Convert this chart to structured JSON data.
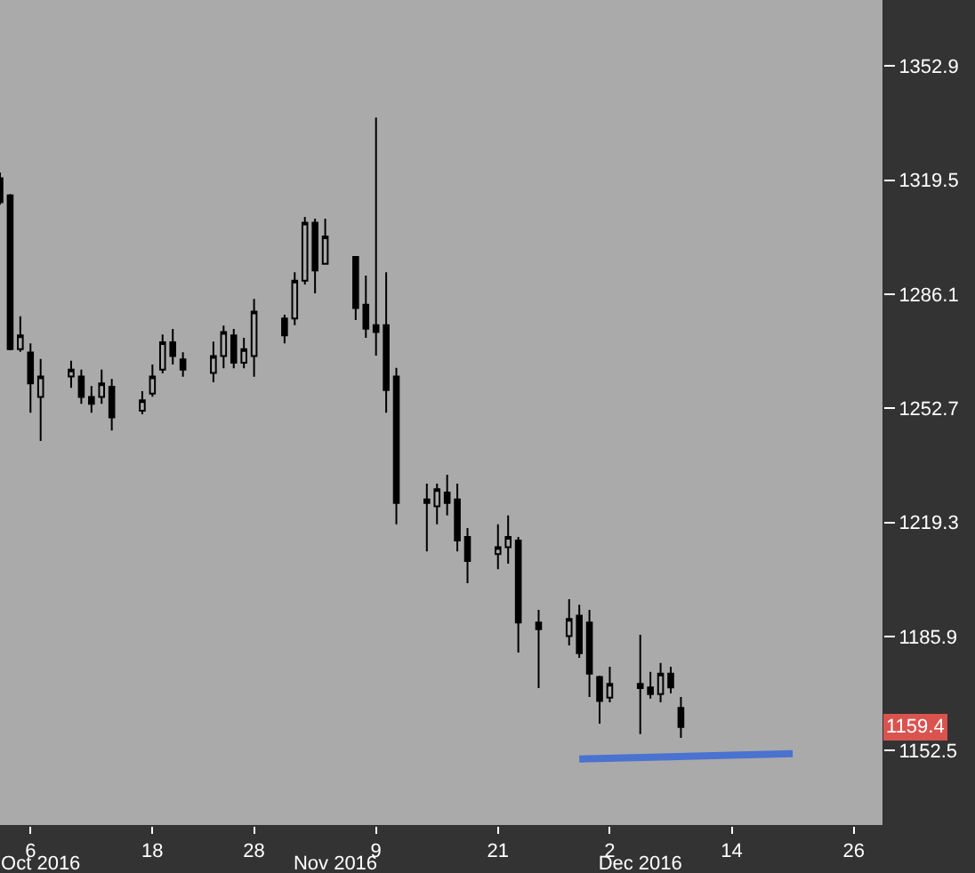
{
  "chart_data": {
    "type": "candlestick",
    "x": [
      "2016-10-03",
      "2016-10-04",
      "2016-10-05",
      "2016-10-06",
      "2016-10-07",
      "2016-10-10",
      "2016-10-11",
      "2016-10-12",
      "2016-10-13",
      "2016-10-14",
      "2016-10-17",
      "2016-10-18",
      "2016-10-19",
      "2016-10-20",
      "2016-10-21",
      "2016-10-24",
      "2016-10-25",
      "2016-10-26",
      "2016-10-27",
      "2016-10-28",
      "2016-10-31",
      "2016-11-01",
      "2016-11-02",
      "2016-11-03",
      "2016-11-04",
      "2016-11-07",
      "2016-11-08",
      "2016-11-09",
      "2016-11-10",
      "2016-11-11",
      "2016-11-14",
      "2016-11-15",
      "2016-11-16",
      "2016-11-17",
      "2016-11-18",
      "2016-11-21",
      "2016-11-22",
      "2016-11-23",
      "2016-11-25",
      "2016-11-28",
      "2016-11-29",
      "2016-11-30",
      "2016-12-01",
      "2016-12-02",
      "2016-12-05",
      "2016-12-06",
      "2016-12-07",
      "2016-12-08",
      "2016-12-09"
    ],
    "ohlc": [
      [
        1320,
        1321.7,
        1312.3,
        1313
      ],
      [
        1315,
        1315.4,
        1269.7,
        1270
      ],
      [
        1270,
        1279.6,
        1269.2,
        1274
      ],
      [
        1269,
        1271.7,
        1251.4,
        1260
      ],
      [
        1256,
        1267.1,
        1243.1,
        1262
      ],
      [
        1262,
        1266.6,
        1258.7,
        1264
      ],
      [
        1262,
        1264,
        1254,
        1256
      ],
      [
        1256,
        1259.2,
        1251.4,
        1254
      ],
      [
        1256,
        1264,
        1254,
        1260
      ],
      [
        1259,
        1261.3,
        1246.2,
        1250
      ],
      [
        1252,
        1257.7,
        1250.9,
        1255
      ],
      [
        1257,
        1265.5,
        1256.1,
        1262
      ],
      [
        1264,
        1274.3,
        1262.9,
        1272
      ],
      [
        1272,
        1275.9,
        1265.5,
        1268
      ],
      [
        1267,
        1269.1,
        1261.9,
        1264
      ],
      [
        1263,
        1272.2,
        1260.3,
        1268
      ],
      [
        1268,
        1276.9,
        1264.4,
        1275
      ],
      [
        1274,
        1275.9,
        1264.4,
        1266
      ],
      [
        1266,
        1273.3,
        1264.4,
        1270
      ],
      [
        1268,
        1284.7,
        1261.9,
        1281
      ],
      [
        1279,
        1280.1,
        1271.7,
        1274
      ],
      [
        1279,
        1292.5,
        1277,
        1290
      ],
      [
        1290,
        1308.7,
        1288.9,
        1307
      ],
      [
        1307,
        1308.2,
        1286.3,
        1293
      ],
      [
        1295,
        1308.2,
        1295,
        1303
      ],
      [
        1297,
        1297,
        1278.5,
        1282
      ],
      [
        1283,
        1291.5,
        1273.3,
        1276
      ],
      [
        1277,
        1337.8,
        1268.1,
        1275
      ],
      [
        1277,
        1292.5,
        1251.4,
        1258
      ],
      [
        1262,
        1264.5,
        1218.7,
        1225
      ],
      [
        1226,
        1230.6,
        1210.8,
        1225
      ],
      [
        1224,
        1230.6,
        1218.7,
        1229
      ],
      [
        1228,
        1233.2,
        1221.3,
        1225
      ],
      [
        1226,
        1230.6,
        1210.8,
        1214
      ],
      [
        1215,
        1217.6,
        1201.5,
        1208
      ],
      [
        1210,
        1218.7,
        1205.6,
        1212
      ],
      [
        1212,
        1221.3,
        1207.2,
        1215
      ],
      [
        1214,
        1215,
        1181.2,
        1190
      ],
      [
        1190,
        1193.7,
        1170.8,
        1188
      ],
      [
        1186,
        1196.8,
        1183.3,
        1191
      ],
      [
        1192,
        1195.2,
        1179.6,
        1181
      ],
      [
        1190,
        1193.7,
        1168.2,
        1175
      ],
      [
        1174,
        1174.4,
        1160.4,
        1167
      ],
      [
        1168,
        1177,
        1166.6,
        1172
      ],
      [
        1172,
        1186.4,
        1157.3,
        1170.8
      ],
      [
        1171,
        1175.5,
        1167.7,
        1169
      ],
      [
        1169,
        1178.1,
        1166.6,
        1175
      ],
      [
        1175,
        1177,
        1169.2,
        1171
      ],
      [
        1165,
        1168.2,
        1156.2,
        1159.4
      ]
    ],
    "color": "#000000",
    "series": [
      {
        "type": "line",
        "x": [
          "2016-11-29",
          "2016-12-20"
        ],
        "values": [
          1150.0,
          1151.6
        ],
        "color": "#4a72d0"
      }
    ],
    "xlim": [
      "2016-10-03",
      "2016-12-28T20:00"
    ],
    "xticks": [
      {
        "value": "2016-10-06",
        "label": "6"
      },
      {
        "value": "2016-10-18",
        "label": "18"
      },
      {
        "value": "2016-10-28",
        "label": "28"
      },
      {
        "value": "2016-11-09",
        "label": "9"
      },
      {
        "value": "2016-11-21",
        "label": "21"
      },
      {
        "value": "2016-12-02",
        "label": "2"
      },
      {
        "value": "2016-12-14",
        "label": "14"
      },
      {
        "value": "2016-12-26",
        "label": "26"
      }
    ],
    "x2lim": [
      "2016-10-03",
      "2016-12-28T20:00"
    ],
    "x2ticks": [
      {
        "value": "2016-10-07",
        "label": "Oct 2016"
      },
      {
        "value": "2016-11-05",
        "label": "Nov 2016"
      },
      {
        "value": "2016-12-05",
        "label": "Dec 2016"
      }
    ],
    "ylim": [
      1130.7,
      1372.2
    ],
    "yticks": [
      1152.5,
      1185.9,
      1219.3,
      1252.7,
      1286.1,
      1319.5,
      1352.9
    ],
    "annotations": [
      "1159.4"
    ],
    "grid": false,
    "legend": false
  }
}
